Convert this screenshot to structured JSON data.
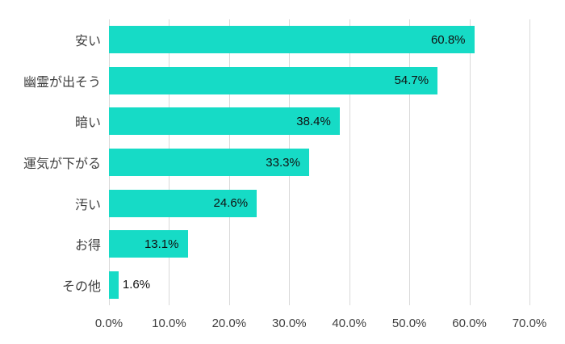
{
  "chart_data": {
    "type": "bar",
    "orientation": "horizontal",
    "title": "",
    "xlabel": "",
    "ylabel": "",
    "categories": [
      "安い",
      "幽霊が出そう",
      "暗い",
      "運気が下がる",
      "汚い",
      "お得",
      "その他"
    ],
    "values": [
      60.8,
      54.7,
      38.4,
      33.3,
      24.6,
      13.1,
      1.6
    ],
    "data_labels": [
      "60.8%",
      "54.7%",
      "38.4%",
      "33.3%",
      "24.6%",
      "13.1%",
      "1.6%"
    ],
    "x_ticks": [
      "0.0%",
      "10.0%",
      "20.0%",
      "30.0%",
      "40.0%",
      "50.0%",
      "60.0%",
      "70.0%"
    ],
    "x_tick_values": [
      0,
      10,
      20,
      30,
      40,
      50,
      60,
      70
    ],
    "xlim": [
      0,
      70
    ],
    "grid": true,
    "legend": false,
    "colors": {
      "bar": "#16dbc6",
      "gridline": "#d9d9d9",
      "axis_text": "#404040",
      "data_label": "#111111",
      "background": "#ffffff"
    }
  }
}
